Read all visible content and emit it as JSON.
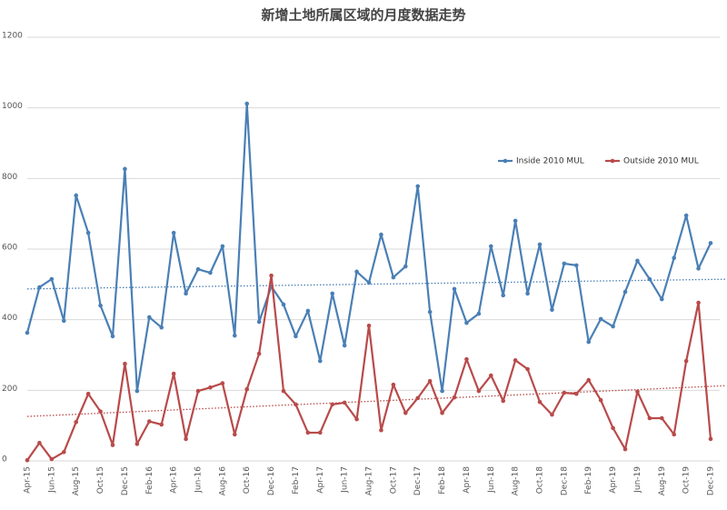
{
  "chart_data": {
    "type": "line",
    "title": "新增土地所属区域的月度数据走势",
    "categories": [
      "Apr-15",
      null,
      "Jun-15",
      null,
      "Aug-15",
      null,
      "Oct-15",
      null,
      "Dec-15",
      null,
      "Feb-16",
      null,
      "Apr-16",
      null,
      "Jun-16",
      null,
      "Aug-16",
      null,
      "Oct-16",
      null,
      "Dec-16",
      null,
      "Feb-17",
      null,
      "Apr-17",
      null,
      "Jun-17",
      null,
      "Aug-17",
      null,
      "Oct-17",
      null,
      "Dec-17",
      null,
      "Feb-18",
      null,
      "Apr-18",
      null,
      "Jun-18",
      null,
      "Aug-18",
      null,
      "Oct-18",
      null,
      "Dec-18",
      null,
      "Feb-19",
      null,
      "Apr-19",
      null,
      "Jun-19",
      null,
      "Aug-19",
      null,
      "Oct-19",
      null,
      "Dec-19"
    ],
    "series": [
      {
        "name": "Inside 2010 MUL",
        "color": "#4a7fb5",
        "values": [
          363,
          492,
          515,
          397,
          752,
          646,
          440,
          353,
          827,
          198,
          407,
          378,
          646,
          474,
          543,
          533,
          608,
          355,
          1012,
          394,
          494,
          443,
          353,
          425,
          283,
          474,
          327,
          536,
          505,
          641,
          520,
          551,
          778,
          422,
          198,
          487,
          391,
          417,
          608,
          469,
          680,
          474,
          613,
          428,
          559,
          554,
          337,
          402,
          381,
          479,
          567,
          515,
          458,
          575,
          695,
          545,
          617
        ]
      },
      {
        "name": "Outside 2010 MUL",
        "color": "#b94a4a",
        "values": [
          2,
          51,
          5,
          25,
          110,
          190,
          140,
          45,
          275,
          48,
          112,
          103,
          247,
          62,
          198,
          208,
          220,
          75,
          203,
          304,
          525,
          198,
          160,
          80,
          80,
          160,
          165,
          118,
          383,
          87,
          216,
          136,
          178,
          226,
          136,
          180,
          288,
          198,
          242,
          170,
          285,
          260,
          167,
          131,
          193,
          190,
          229,
          172,
          93,
          33,
          196,
          121,
          121,
          75,
          283,
          448,
          62
        ]
      }
    ],
    "ylim": [
      0,
      1200
    ],
    "yticks": [
      0,
      200,
      400,
      600,
      800,
      1000,
      1200
    ],
    "grid": true,
    "trendline": true,
    "legend": "upper right"
  }
}
